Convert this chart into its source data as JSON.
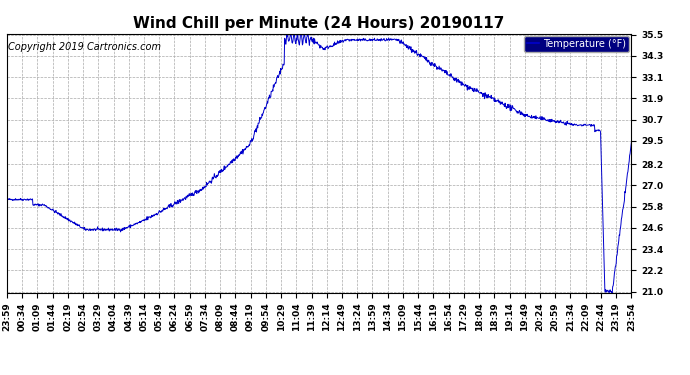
{
  "title": "Wind Chill per Minute (24 Hours) 20190117",
  "ylabel": "Temperature (°F)",
  "copyright_text": "Copyright 2019 Cartronics.com",
  "line_color": "#0000cc",
  "background_color": "#ffffff",
  "plot_bg_color": "#ffffff",
  "legend_bg_color": "#000080",
  "legend_text_color": "#ffffff",
  "yticks": [
    21.0,
    22.2,
    23.4,
    24.6,
    25.8,
    27.0,
    28.2,
    29.5,
    30.7,
    31.9,
    33.1,
    34.3,
    35.5
  ],
  "ylim": [
    21.0,
    35.5
  ],
  "xtick_labels": [
    "23:59",
    "00:34",
    "01:09",
    "01:44",
    "02:19",
    "02:54",
    "03:29",
    "04:04",
    "04:39",
    "05:14",
    "05:49",
    "06:24",
    "06:59",
    "07:34",
    "08:09",
    "08:44",
    "09:19",
    "09:54",
    "10:29",
    "11:04",
    "11:39",
    "12:14",
    "12:49",
    "13:24",
    "13:59",
    "14:34",
    "15:09",
    "15:44",
    "16:19",
    "16:54",
    "17:29",
    "18:04",
    "18:39",
    "19:14",
    "19:49",
    "20:24",
    "20:59",
    "21:34",
    "22:09",
    "22:44",
    "23:19",
    "23:54"
  ],
  "grid_color": "#aaaaaa",
  "grid_style": "--",
  "title_fontsize": 11,
  "tick_fontsize": 6.5,
  "copyright_fontsize": 7
}
